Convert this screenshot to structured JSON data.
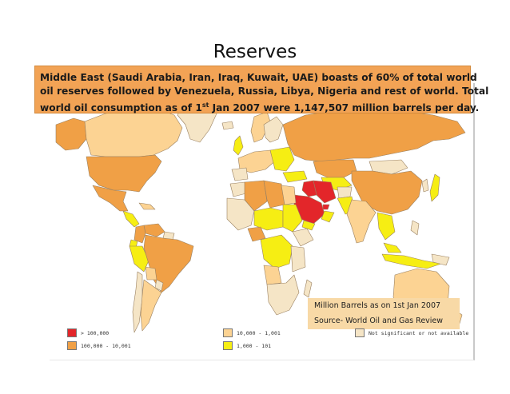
{
  "title": "Reserves",
  "caption": {
    "line1": "Middle East (Saudi Arabia, Iran, Iraq, Kuwait, UAE) boasts of 60% of total world",
    "line2": "oil reserves followed by Venezuela, Russia, Libya, Nigeria and rest of world. Total",
    "line3_pre": "world oil consumption as of 1",
    "line3_sup": "st",
    "line3_post": " Jan 2007 were 1,147,507 million barrels per day."
  },
  "source_box": {
    "line1": "Million Barrels as on 1st Jan 2007",
    "line2": "Source- World Oil and Gas Review"
  },
  "legend": [
    {
      "label": "> 100,000",
      "color": "#e3262a"
    },
    {
      "label": "100,000 - 10,001",
      "color": "#f0a046"
    },
    {
      "label": "10,000 - 1,001",
      "color": "#fcd393"
    },
    {
      "label": "1,000 - 101",
      "color": "#f6ee13"
    },
    {
      "label": "Not significant or not available",
      "color": "#f5e5c6"
    }
  ],
  "colors": {
    "very_high": "#e3262a",
    "high": "#f0a046",
    "medium": "#fcd393",
    "low": "#f6ee13",
    "none": "#f5e5c6",
    "caption_bg": "#f2a355",
    "source_bg": "#f8d9a6"
  }
}
